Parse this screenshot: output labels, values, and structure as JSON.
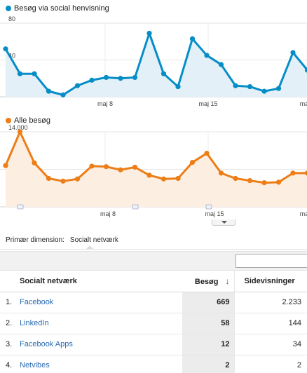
{
  "chart_data": [
    {
      "type": "area",
      "series": [
        {
          "name": "Besøg via social henvisning",
          "values": [
            52,
            25,
            25,
            6,
            2,
            12,
            18,
            21,
            20,
            21,
            69,
            25,
            11,
            63,
            45,
            35,
            12,
            11,
            6,
            9,
            48,
            29
          ],
          "color": "#058dc7"
        }
      ],
      "yticks": [
        "80",
        "40"
      ],
      "ylim": [
        0,
        80
      ],
      "xticks": [
        "maj 8",
        "maj 15",
        "ma"
      ],
      "grid": true
    },
    {
      "type": "area",
      "series": [
        {
          "name": "Alle besøg",
          "values": [
            7700,
            14000,
            8200,
            5300,
            4800,
            5200,
            7600,
            7500,
            6900,
            7400,
            5900,
            5200,
            5300,
            8300,
            10000,
            6300,
            5300,
            4900,
            4500,
            4600,
            6300,
            6300
          ],
          "color": "#ed7e17"
        }
      ],
      "yticks": [
        "14.000",
        "7.000"
      ],
      "ylim": [
        0,
        14000
      ],
      "xticks": [
        "maj 8",
        "maj 15",
        "ma"
      ],
      "grid": true
    }
  ],
  "dimension": {
    "label": "Primær dimension:",
    "value": "Socialt netværk"
  },
  "table": {
    "headers": {
      "name": "Socialt netværk",
      "visits": "Besøg",
      "sort_arrow": "↓",
      "pageviews": "Sidevisninger"
    },
    "rows": [
      {
        "index": "1.",
        "name": "Facebook",
        "visits": "669",
        "pageviews": "2.233"
      },
      {
        "index": "2.",
        "name": "LinkedIn",
        "visits": "58",
        "pageviews": "144"
      },
      {
        "index": "3.",
        "name": "Facebook Apps",
        "visits": "12",
        "pageviews": "34"
      },
      {
        "index": "4.",
        "name": "Netvibes",
        "visits": "2",
        "pageviews": "2"
      }
    ]
  }
}
